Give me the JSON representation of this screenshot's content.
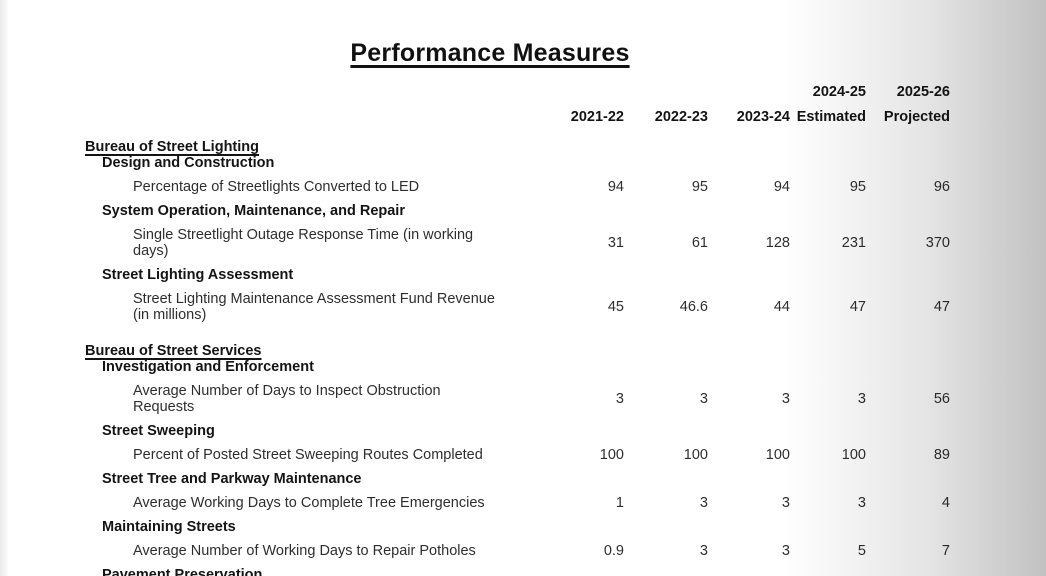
{
  "page": {
    "title": "Performance Measures"
  },
  "colors": {
    "text": "#2e2e2e",
    "bold_text": "#141414",
    "scan_shadow": "#c1c1c1",
    "background": "#ffffff"
  },
  "table": {
    "header": {
      "columns": [
        {
          "line1": "",
          "line2": "2021-22"
        },
        {
          "line1": "",
          "line2": "2022-23"
        },
        {
          "line1": "",
          "line2": "2023-24"
        },
        {
          "line1": "2024-25",
          "line2": "Estimated"
        },
        {
          "line1": "2025-26",
          "line2": "Projected"
        }
      ]
    },
    "rows": [
      {
        "type": "section",
        "label": "Bureau of Street Lighting"
      },
      {
        "type": "subsection",
        "label": "Design and Construction"
      },
      {
        "type": "measure",
        "label": "Percentage of Streetlights Converted to LED",
        "values": [
          "94",
          "95",
          "94",
          "95",
          "96"
        ]
      },
      {
        "type": "subsection",
        "label": "System Operation, Maintenance, and Repair"
      },
      {
        "type": "measure",
        "label": "Single Streetlight Outage Response Time (in working",
        "label2": "days)",
        "values": [
          "31",
          "61",
          "128",
          "231",
          "370"
        ]
      },
      {
        "type": "subsection",
        "label": "Street Lighting Assessment"
      },
      {
        "type": "measure",
        "label": "Street Lighting Maintenance Assessment Fund Revenue",
        "label2": "(in millions)",
        "values": [
          "45",
          "46.6",
          "44",
          "47",
          "47"
        ]
      },
      {
        "type": "section",
        "label": "Bureau of Street Services",
        "gap_before": true
      },
      {
        "type": "subsection",
        "label": "Investigation and Enforcement"
      },
      {
        "type": "measure",
        "label": "Average Number of Days to Inspect Obstruction",
        "label2": "Requests",
        "values": [
          "3",
          "3",
          "3",
          "3",
          "56"
        ]
      },
      {
        "type": "subsection",
        "label": "Street Sweeping"
      },
      {
        "type": "measure",
        "label": "Percent of Posted Street Sweeping Routes Completed",
        "values": [
          "100",
          "100",
          "100",
          "100",
          "89"
        ]
      },
      {
        "type": "subsection",
        "label": "Street Tree and Parkway Maintenance"
      },
      {
        "type": "measure",
        "label": "Average Working Days to Complete Tree Emergencies",
        "values": [
          "1",
          "3",
          "3",
          "3",
          "4"
        ]
      },
      {
        "type": "subsection",
        "label": "Maintaining Streets"
      },
      {
        "type": "measure",
        "label": "Average Number of Working Days to Repair Potholes",
        "values": [
          "0.9",
          "3",
          "3",
          "5",
          "7"
        ]
      },
      {
        "type": "subsection",
        "label": "Pavement Preservation"
      }
    ]
  }
}
